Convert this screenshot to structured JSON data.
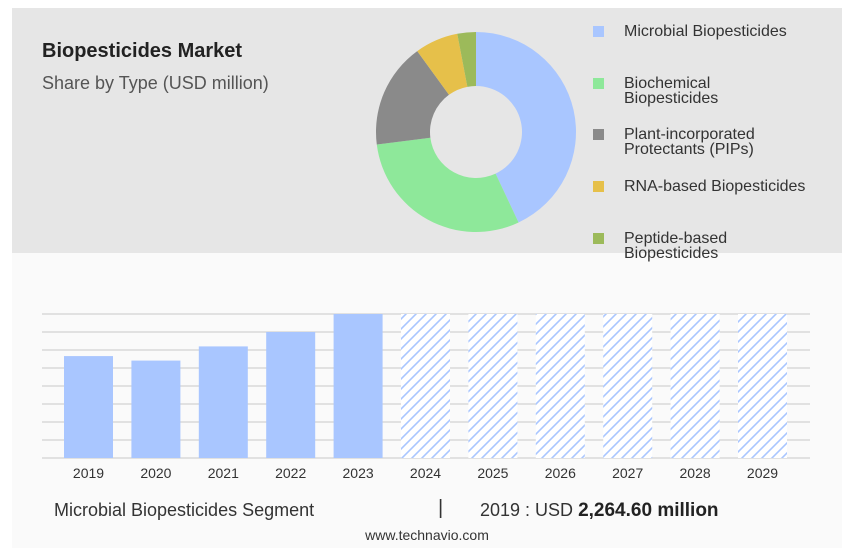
{
  "title": "Biopesticides Market",
  "subtitle": "Share by Type (USD million)",
  "colors": {
    "bar_actual": "#a9c6ff",
    "bar_forecast_hatch": "#a9c6ff",
    "grid": "#c8c8c8",
    "top_panel": "#e6e6e6"
  },
  "legend": [
    {
      "label": "Microbial Biopesticides",
      "color": "#a9c6ff"
    },
    {
      "label": "Biochemical\nBiopesticides",
      "color": "#8ee89a"
    },
    {
      "label": "Plant-incorporated\nProtectants (PIPs)",
      "color": "#8a8a8a"
    },
    {
      "label": "RNA-based Biopesticides",
      "color": "#e6c04a"
    },
    {
      "label": "Peptide-based\nBiopesticides",
      "color": "#9cba5a"
    }
  ],
  "footer": {
    "segment": "Microbial Biopesticides Segment",
    "separator": "|",
    "year_label": "2019 : USD",
    "value": "2,264.60 million"
  },
  "source": "www.technavio.com",
  "chart_data": [
    {
      "type": "pie",
      "donut": true,
      "categories": [
        "Microbial Biopesticides",
        "Biochemical Biopesticides",
        "Plant-incorporated Protectants (PIPs)",
        "RNA-based Biopesticides",
        "Peptide-based Biopesticides"
      ],
      "values": [
        43,
        30,
        17,
        7,
        3
      ],
      "start": "top",
      "direction": "clockwise"
    },
    {
      "type": "bar",
      "categories": [
        "2019",
        "2020",
        "2021",
        "2022",
        "2023",
        "2024",
        "2025",
        "2026",
        "2027",
        "2028",
        "2029"
      ],
      "values": [
        2264.6,
        2165,
        2480,
        2800,
        3200,
        3200,
        3200,
        3200,
        3200,
        3200,
        3200
      ],
      "forecast_from": "2024",
      "forecast_style": "hatched",
      "ylim": [
        0,
        3200
      ],
      "grid": true
    }
  ]
}
